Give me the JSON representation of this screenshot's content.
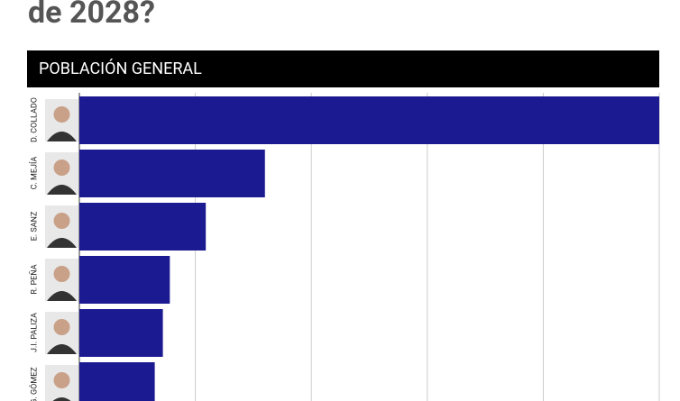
{
  "title": "de 2028?",
  "chart_data": {
    "type": "bar",
    "orientation": "horizontal",
    "title": "POBLACIÓN GENERAL",
    "categories": [
      "D. COLLADO",
      "C. MEJÍA",
      "E. SANZ",
      "R. PEÑA",
      "J.I. PALIZA",
      "G. GÓMEZ"
    ],
    "values": [
      50,
      16,
      10.9,
      7.8,
      7.2,
      6.5
    ],
    "color": "#1b1a91",
    "xlim": [
      0,
      50
    ],
    "xticks": [
      0,
      10,
      20,
      30,
      40,
      50
    ],
    "grid": true
  }
}
